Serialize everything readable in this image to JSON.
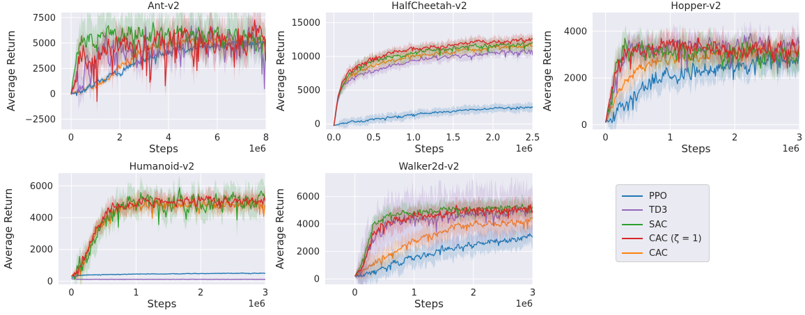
{
  "chart_data": [
    {
      "type": "line",
      "title": "Ant-v2",
      "xlabel": "Steps",
      "ylabel": "Average Return",
      "x_multiplier_label": "1e6",
      "xlim": [
        -0.4,
        8
      ],
      "ylim": [
        -3500,
        8000
      ],
      "xticks": [
        0,
        2,
        4,
        6,
        8
      ],
      "xtick_labels": [
        "0",
        "2",
        "4",
        "6",
        "8"
      ],
      "yticks": [
        -2500,
        0,
        2500,
        5000,
        7500
      ],
      "ytick_labels": [
        "−2500",
        "0",
        "2500",
        "5000",
        "7500"
      ],
      "grid": true,
      "series": [
        {
          "name": "PPO",
          "x": [
            0,
            0.5,
            1,
            1.5,
            2,
            2.5,
            3,
            3.5,
            4,
            5,
            6,
            7,
            8
          ],
          "y": [
            0,
            500,
            1000,
            1600,
            2200,
            2800,
            3300,
            3800,
            4100,
            4600,
            4900,
            5000,
            5000
          ],
          "noise": 200,
          "band": 250
        },
        {
          "name": "TD3",
          "x": [
            0,
            0.5,
            1,
            1.5,
            2,
            3,
            4,
            5,
            6,
            7,
            8
          ],
          "y": [
            0,
            2000,
            3200,
            3800,
            4200,
            4500,
            4700,
            4800,
            4800,
            4900,
            4900
          ],
          "noise": 1000,
          "band": 1300
        },
        {
          "name": "SAC",
          "x": [
            0,
            0.2,
            0.5,
            1,
            1.5,
            2,
            3,
            4,
            5,
            6,
            7,
            8
          ],
          "y": [
            0,
            3500,
            4800,
            5400,
            5700,
            5600,
            5800,
            5800,
            5600,
            5500,
            5500,
            5200
          ],
          "noise": 600,
          "band": 1800
        },
        {
          "name": "CAC (ζ = 1)",
          "x": [
            0,
            0.3,
            0.6,
            1,
            1.5,
            2,
            3,
            4,
            5,
            6,
            7,
            8
          ],
          "y": [
            0,
            2700,
            3800,
            4200,
            4600,
            4700,
            5000,
            5100,
            5200,
            5200,
            5300,
            5300
          ],
          "noise": 900,
          "band": 1500
        },
        {
          "name": "CAC",
          "x": [
            0,
            0.5,
            1,
            1.5,
            2,
            2.5,
            3,
            3.5,
            4,
            5,
            6,
            7,
            8
          ],
          "y": [
            0,
            400,
            800,
            1500,
            2700,
            3800,
            4500,
            4800,
            5000,
            5100,
            5100,
            5200,
            5200
          ],
          "noise": 200,
          "band": 300
        }
      ]
    },
    {
      "type": "line",
      "title": "HalfCheetah-v2",
      "xlabel": "Steps",
      "ylabel": "Average Return",
      "x_multiplier_label": "1e6",
      "xlim": [
        -0.1,
        2.5
      ],
      "ylim": [
        -800,
        16500
      ],
      "xticks": [
        0,
        0.5,
        1.0,
        1.5,
        2.0,
        2.5
      ],
      "xtick_labels": [
        "0.0",
        "0.5",
        "1.0",
        "1.5",
        "2.0",
        "2.5"
      ],
      "yticks": [
        0,
        5000,
        10000,
        15000
      ],
      "ytick_labels": [
        "0",
        "5000",
        "10000",
        "15000"
      ],
      "grid": true,
      "series": [
        {
          "name": "PPO",
          "x": [
            0,
            0.25,
            0.5,
            0.75,
            1,
            1.5,
            2,
            2.5
          ],
          "y": [
            -200,
            300,
            700,
            1000,
            1400,
            1900,
            2300,
            2500
          ],
          "noise": 100,
          "band": 600
        },
        {
          "name": "TD3",
          "x": [
            0,
            0.05,
            0.1,
            0.2,
            0.35,
            0.5,
            0.75,
            1,
            1.5,
            2,
            2.5
          ],
          "y": [
            -300,
            3500,
            5200,
            6500,
            7500,
            8000,
            8700,
            9300,
            10000,
            10500,
            10800
          ],
          "noise": 200,
          "band": 700
        },
        {
          "name": "SAC",
          "x": [
            0,
            0.05,
            0.1,
            0.2,
            0.35,
            0.5,
            0.75,
            1,
            1.5,
            2,
            2.5
          ],
          "y": [
            -300,
            3800,
            5800,
            7500,
            8500,
            9300,
            10000,
            10500,
            11200,
            11600,
            11900
          ],
          "noise": 200,
          "band": 900
        },
        {
          "name": "CAC (ζ = 1)",
          "x": [
            0,
            0.05,
            0.1,
            0.2,
            0.35,
            0.5,
            0.75,
            1,
            1.5,
            2,
            2.5
          ],
          "y": [
            -300,
            4000,
            6000,
            7800,
            9000,
            9800,
            10600,
            11200,
            11800,
            12200,
            12400
          ],
          "noise": 200,
          "band": 700
        },
        {
          "name": "CAC",
          "x": [
            0,
            0.05,
            0.1,
            0.2,
            0.35,
            0.5,
            0.75,
            1,
            1.5,
            2,
            2.5
          ],
          "y": [
            -300,
            3600,
            5400,
            7000,
            8000,
            8700,
            9500,
            10000,
            10800,
            11300,
            11600
          ],
          "noise": 200,
          "band": 800
        }
      ]
    },
    {
      "type": "line",
      "title": "Hopper-v2",
      "xlabel": "Steps",
      "ylabel": "Average Return",
      "x_multiplier_label": "1e6",
      "xlim": [
        -0.2,
        3
      ],
      "ylim": [
        -200,
        4800
      ],
      "xticks": [
        0,
        1,
        2,
        3
      ],
      "xtick_labels": [
        "0",
        "1",
        "2",
        "3"
      ],
      "yticks": [
        0,
        2000,
        4000
      ],
      "ytick_labels": [
        "0",
        "2000",
        "4000"
      ],
      "grid": true,
      "series": [
        {
          "name": "PPO",
          "x": [
            0,
            0.1,
            0.2,
            0.4,
            0.6,
            0.8,
            1,
            1.5,
            2,
            2.5,
            3
          ],
          "y": [
            100,
            300,
            700,
            1200,
            1600,
            1900,
            2100,
            2400,
            2600,
            2700,
            2800
          ],
          "noise": 250,
          "band": 500
        },
        {
          "name": "TD3",
          "x": [
            0,
            0.1,
            0.2,
            0.3,
            0.5,
            0.7,
            1,
            1.5,
            2,
            2.5,
            3
          ],
          "y": [
            100,
            1200,
            2500,
            3000,
            3200,
            3300,
            3300,
            3300,
            3400,
            3400,
            3400
          ],
          "noise": 250,
          "band": 500
        },
        {
          "name": "SAC",
          "x": [
            0,
            0.1,
            0.2,
            0.3,
            0.5,
            0.7,
            1,
            1.5,
            2,
            2.5,
            3
          ],
          "y": [
            100,
            1500,
            2800,
            3200,
            3300,
            3300,
            3200,
            3100,
            3100,
            3000,
            2900
          ],
          "noise": 300,
          "band": 600
        },
        {
          "name": "CAC (ζ = 1)",
          "x": [
            0,
            0.1,
            0.2,
            0.3,
            0.5,
            0.7,
            1,
            1.5,
            2,
            2.5,
            3
          ],
          "y": [
            100,
            1400,
            2600,
            3100,
            3200,
            3300,
            3300,
            3200,
            3200,
            3200,
            3100
          ],
          "noise": 250,
          "band": 500
        },
        {
          "name": "CAC",
          "x": [
            0,
            0.1,
            0.2,
            0.4,
            0.6,
            0.8,
            1,
            1.5,
            2,
            2.5,
            3
          ],
          "y": [
            100,
            700,
            1400,
            2100,
            2500,
            2700,
            2800,
            2900,
            3000,
            3100,
            3100
          ],
          "noise": 150,
          "band": 450
        }
      ]
    },
    {
      "type": "line",
      "title": "Humanoid-v2",
      "xlabel": "Steps",
      "ylabel": "Average Return",
      "x_multiplier_label": "1e6",
      "xlim": [
        -0.2,
        3
      ],
      "ylim": [
        -200,
        6800
      ],
      "xticks": [
        0,
        1,
        2,
        3
      ],
      "xtick_labels": [
        "0",
        "1",
        "2",
        "3"
      ],
      "yticks": [
        0,
        2000,
        4000,
        6000
      ],
      "ytick_labels": [
        "0",
        "2000",
        "4000",
        "6000"
      ],
      "grid": true,
      "series": [
        {
          "name": "PPO",
          "x": [
            0,
            0.05,
            0.1,
            0.2,
            0.5,
            1,
            1.5,
            2,
            2.5,
            3
          ],
          "y": [
            200,
            300,
            350,
            380,
            420,
            450,
            470,
            480,
            500,
            500
          ],
          "noise": 10,
          "band": 40
        },
        {
          "name": "TD3",
          "x": [
            0,
            0.05,
            0.1,
            0.3,
            1,
            2,
            3
          ],
          "y": [
            150,
            130,
            120,
            120,
            120,
            120,
            120
          ],
          "noise": 5,
          "band": 40
        },
        {
          "name": "SAC",
          "x": [
            0,
            0.1,
            0.2,
            0.3,
            0.45,
            0.6,
            0.8,
            1,
            1.5,
            2,
            2.5,
            3
          ],
          "y": [
            300,
            600,
            1200,
            2200,
            3600,
            4300,
            4700,
            4800,
            4900,
            4900,
            5000,
            5000
          ],
          "noise": 400,
          "band": 800
        },
        {
          "name": "CAC (ζ = 1)",
          "x": [
            0,
            0.1,
            0.2,
            0.3,
            0.45,
            0.6,
            0.8,
            1,
            1.5,
            2,
            2.5,
            3
          ],
          "y": [
            300,
            600,
            1300,
            2500,
            3800,
            4500,
            4800,
            4900,
            5000,
            5000,
            5000,
            5100
          ],
          "noise": 200,
          "band": 500
        },
        {
          "name": "CAC",
          "x": [
            0,
            0.1,
            0.2,
            0.3,
            0.45,
            0.6,
            0.8,
            1,
            1.5,
            2,
            2.5,
            3
          ],
          "y": [
            300,
            600,
            1200,
            2300,
            3500,
            4200,
            4500,
            4700,
            4800,
            4800,
            4900,
            4900
          ],
          "noise": 200,
          "band": 500
        }
      ]
    },
    {
      "type": "line",
      "title": "Walker2d-v2",
      "xlabel": "Steps",
      "ylabel": "Average Return",
      "x_multiplier_label": "1e6",
      "xlim": [
        -0.5,
        3
      ],
      "ylim": [
        -400,
        7700
      ],
      "xticks": [
        0,
        1,
        2,
        3
      ],
      "xtick_labels": [
        "0",
        "1",
        "2",
        "3"
      ],
      "yticks": [
        0,
        2000,
        4000,
        6000
      ],
      "ytick_labels": [
        "0",
        "2000",
        "4000",
        "6000"
      ],
      "grid": true,
      "series": [
        {
          "name": "PPO",
          "x": [
            0,
            0.2,
            0.4,
            0.6,
            0.8,
            1,
            1.5,
            2,
            2.5,
            3
          ],
          "y": [
            200,
            300,
            600,
            1000,
            1300,
            1600,
            2100,
            2500,
            2800,
            3000
          ],
          "noise": 150,
          "band": 700
        },
        {
          "name": "TD3",
          "x": [
            0,
            0.1,
            0.2,
            0.3,
            0.5,
            0.7,
            1,
            1.5,
            2,
            2.5,
            3
          ],
          "y": [
            200,
            500,
            1500,
            2800,
            3800,
            4200,
            4300,
            4500,
            4700,
            4800,
            4900
          ],
          "noise": 250,
          "band": 1800
        },
        {
          "name": "SAC",
          "x": [
            0,
            0.1,
            0.2,
            0.3,
            0.5,
            0.7,
            1,
            1.5,
            2,
            2.5,
            3
          ],
          "y": [
            200,
            800,
            2200,
            3800,
            4500,
            4700,
            4800,
            5000,
            5100,
            5200,
            5200
          ],
          "noise": 150,
          "band": 600
        },
        {
          "name": "CAC (ζ = 1)",
          "x": [
            0,
            0.1,
            0.2,
            0.3,
            0.5,
            0.7,
            1,
            1.5,
            2,
            2.5,
            3
          ],
          "y": [
            200,
            700,
            1800,
            3200,
            4000,
            4300,
            4500,
            4700,
            4900,
            5000,
            5100
          ],
          "noise": 200,
          "band": 700
        },
        {
          "name": "CAC",
          "x": [
            0,
            0.2,
            0.4,
            0.6,
            0.8,
            1,
            1.3,
            1.6,
            2,
            2.5,
            3
          ],
          "y": [
            200,
            700,
            1400,
            1900,
            2300,
            2700,
            3200,
            3700,
            4000,
            4100,
            4200
          ],
          "noise": 150,
          "band": 700
        }
      ]
    }
  ],
  "legend": {
    "placement": "right",
    "entries": [
      {
        "label": "PPO",
        "color": "#1f77b4"
      },
      {
        "label": "TD3",
        "color": "#9467bd"
      },
      {
        "label": "SAC",
        "color": "#2ca02c"
      },
      {
        "label": "CAC (ζ = 1)",
        "color": "#d62728"
      },
      {
        "label": "CAC",
        "color": "#ff7f0e"
      }
    ]
  },
  "colors": {
    "panel_background": "#eaeaf2",
    "grid": "#ffffff",
    "text": "#262626"
  }
}
